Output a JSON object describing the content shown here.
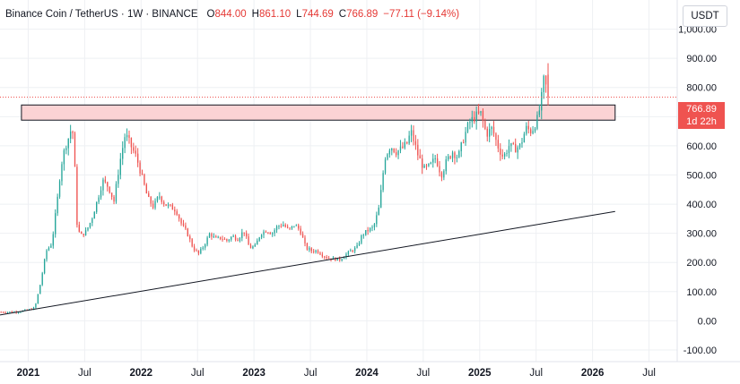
{
  "header": {
    "symbol": "Binance Coin / TetherUS · 1W · BINANCE",
    "open_label": "O",
    "open": "844.00",
    "high_label": "H",
    "high": "861.10",
    "low_label": "L",
    "low": "744.69",
    "close_label": "C",
    "close": "766.89",
    "change": "−77.11 (−9.14%)"
  },
  "currency": "USDT",
  "price_tag": {
    "price": "766.89",
    "countdown": "1d 22h"
  },
  "colors": {
    "up": "#26a69a",
    "down": "#ef5350",
    "zone_fill": "#fbd3d4",
    "zone_border": "#131722",
    "trendline": "#131722",
    "text": "#131722",
    "grid": "#eef0f3"
  },
  "chart_data": {
    "type": "candlestick",
    "interval": "1W",
    "y_axis": {
      "ticks": [
        "-100.00",
        "0.00",
        "100.00",
        "200.00",
        "300.00",
        "400.00",
        "500.00",
        "600.00",
        "700.00",
        "800.00",
        "900.00",
        "1,000.00"
      ],
      "tick_values": [
        -100,
        0,
        100,
        200,
        300,
        400,
        500,
        600,
        700,
        800,
        900,
        1000
      ],
      "range": [
        -140,
        1100
      ]
    },
    "x_axis": {
      "labels": [
        "2021",
        "Jul",
        "2022",
        "Jul",
        "2023",
        "Jul",
        "2024",
        "Jul",
        "2025",
        "Jul",
        "2026",
        "Jul"
      ],
      "label_years": [
        2021.0,
        2021.5,
        2022.0,
        2022.5,
        2023.0,
        2023.5,
        2024.0,
        2024.5,
        2025.0,
        2025.5,
        2026.0,
        2026.5
      ],
      "bold": [
        true,
        false,
        true,
        false,
        true,
        false,
        true,
        false,
        true,
        false,
        true,
        false
      ],
      "range_years": [
        2020.75,
        2026.75
      ]
    },
    "resistance_zone": {
      "x0": 2020.94,
      "x1": 2026.2,
      "y_low": 688,
      "y_high": 740
    },
    "trendline": {
      "x0": 2020.75,
      "y0": 20,
      "x1": 2026.2,
      "y1": 375
    },
    "last_price_line": 766.89,
    "anchors": [
      [
        2020.75,
        30
      ],
      [
        2020.9,
        31
      ],
      [
        2021.0,
        38
      ],
      [
        2021.05,
        45
      ],
      [
        2021.1,
        130
      ],
      [
        2021.15,
        240
      ],
      [
        2021.2,
        265
      ],
      [
        2021.25,
        420
      ],
      [
        2021.28,
        530
      ],
      [
        2021.32,
        600
      ],
      [
        2021.35,
        630
      ],
      [
        2021.38,
        670
      ],
      [
        2021.4,
        560
      ],
      [
        2021.42,
        340
      ],
      [
        2021.45,
        290
      ],
      [
        2021.5,
        305
      ],
      [
        2021.55,
        345
      ],
      [
        2021.6,
        410
      ],
      [
        2021.65,
        480
      ],
      [
        2021.7,
        460
      ],
      [
        2021.75,
        410
      ],
      [
        2021.8,
        540
      ],
      [
        2021.85,
        640
      ],
      [
        2021.9,
        600
      ],
      [
        2021.95,
        560
      ],
      [
        2022.0,
        490
      ],
      [
        2022.05,
        420
      ],
      [
        2022.1,
        390
      ],
      [
        2022.15,
        430
      ],
      [
        2022.2,
        400
      ],
      [
        2022.25,
        390
      ],
      [
        2022.3,
        380
      ],
      [
        2022.35,
        330
      ],
      [
        2022.4,
        300
      ],
      [
        2022.45,
        250
      ],
      [
        2022.5,
        230
      ],
      [
        2022.55,
        260
      ],
      [
        2022.6,
        300
      ],
      [
        2022.65,
        280
      ],
      [
        2022.7,
        285
      ],
      [
        2022.75,
        275
      ],
      [
        2022.8,
        290
      ],
      [
        2022.85,
        280
      ],
      [
        2022.9,
        310
      ],
      [
        2022.95,
        250
      ],
      [
        2023.0,
        255
      ],
      [
        2023.05,
        300
      ],
      [
        2023.1,
        310
      ],
      [
        2023.15,
        300
      ],
      [
        2023.2,
        325
      ],
      [
        2023.25,
        330
      ],
      [
        2023.3,
        310
      ],
      [
        2023.35,
        330
      ],
      [
        2023.4,
        310
      ],
      [
        2023.45,
        250
      ],
      [
        2023.5,
        240
      ],
      [
        2023.55,
        240
      ],
      [
        2023.6,
        225
      ],
      [
        2023.65,
        215
      ],
      [
        2023.7,
        212
      ],
      [
        2023.75,
        210
      ],
      [
        2023.8,
        225
      ],
      [
        2023.85,
        240
      ],
      [
        2023.9,
        250
      ],
      [
        2023.95,
        295
      ],
      [
        2024.0,
        310
      ],
      [
        2024.05,
        320
      ],
      [
        2024.1,
        390
      ],
      [
        2024.15,
        560
      ],
      [
        2024.2,
        600
      ],
      [
        2024.25,
        580
      ],
      [
        2024.3,
        590
      ],
      [
        2024.35,
        610
      ],
      [
        2024.38,
        650
      ],
      [
        2024.42,
        600
      ],
      [
        2024.45,
        560
      ],
      [
        2024.5,
        520
      ],
      [
        2024.55,
        530
      ],
      [
        2024.6,
        560
      ],
      [
        2024.65,
        500
      ],
      [
        2024.7,
        550
      ],
      [
        2024.75,
        580
      ],
      [
        2024.8,
        560
      ],
      [
        2024.85,
        630
      ],
      [
        2024.9,
        680
      ],
      [
        2024.95,
        700
      ],
      [
        2025.0,
        710
      ],
      [
        2025.05,
        640
      ],
      [
        2025.1,
        660
      ],
      [
        2025.15,
        600
      ],
      [
        2025.2,
        560
      ],
      [
        2025.25,
        600
      ],
      [
        2025.3,
        590
      ],
      [
        2025.35,
        600
      ],
      [
        2025.4,
        660
      ],
      [
        2025.45,
        650
      ],
      [
        2025.5,
        690
      ],
      [
        2025.53,
        740
      ],
      [
        2025.56,
        830
      ],
      [
        2025.6,
        767
      ]
    ]
  }
}
